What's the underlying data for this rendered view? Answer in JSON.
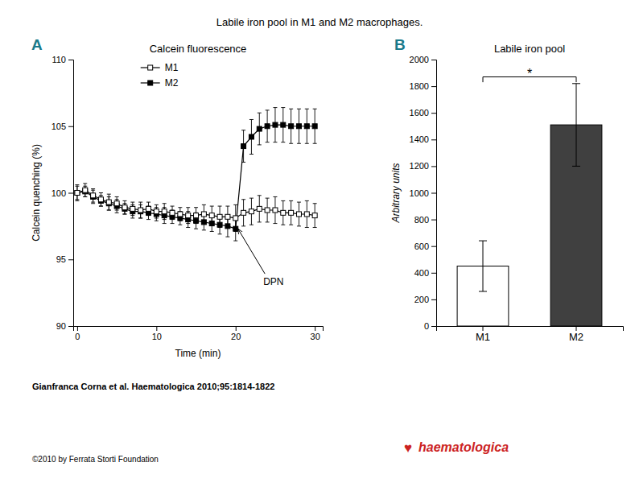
{
  "title": "Labile iron pool in M1 and M2 macrophages.",
  "annotations": [
    {
      "text": "Gianfranca Corna et al. Haematologica 2010;95:1814-1822"
    },
    {
      "text": "©2010 by Ferrata Storti Foundation"
    },
    {
      "text": "♥",
      "color": "#cc2222"
    },
    {
      "text": "haematologica",
      "color": "#cc2222"
    }
  ],
  "chart_data": [
    {
      "type": "line",
      "title": "Calcein fluorescence",
      "x_label": "Time (min)",
      "y_label": "Calcein quenching (%)",
      "x": [
        0,
        1,
        2,
        3,
        4,
        5,
        6,
        7,
        8,
        9,
        10,
        11,
        12,
        13,
        14,
        15,
        16,
        17,
        18,
        19,
        20,
        21,
        22,
        23,
        24,
        25,
        26,
        27,
        28,
        29,
        30
      ],
      "xlim": [
        -0.5,
        31
      ],
      "xticks": [
        0,
        10,
        20,
        30
      ],
      "ylim": [
        90,
        110
      ],
      "yticks": [
        90,
        95,
        100,
        105,
        110
      ],
      "grid": false,
      "legend": "upper left",
      "series": [
        {
          "name": "M1",
          "color": "#000000",
          "marker": "square-open",
          "line_style": "solid",
          "values": [
            100.0,
            100.2,
            99.8,
            99.5,
            99.3,
            99.2,
            98.9,
            98.8,
            98.7,
            98.8,
            98.6,
            98.6,
            98.5,
            98.4,
            98.3,
            98.3,
            98.4,
            98.3,
            98.2,
            98.2,
            98.1,
            98.5,
            98.6,
            98.8,
            98.7,
            98.7,
            98.5,
            98.5,
            98.4,
            98.4,
            98.3
          ],
          "errors": [
            0.6,
            0.5,
            0.5,
            0.5,
            0.6,
            0.5,
            0.5,
            0.5,
            0.6,
            0.5,
            0.5,
            0.6,
            0.5,
            0.5,
            0.6,
            0.6,
            0.7,
            0.7,
            0.8,
            0.8,
            1.0,
            1.0,
            1.0,
            1.0,
            0.9,
            1.0,
            0.9,
            0.9,
            0.9,
            1.0,
            0.9
          ]
        },
        {
          "name": "M2",
          "color": "#000000",
          "marker": "square",
          "line_style": "solid",
          "values": [
            100.0,
            100.1,
            99.7,
            99.4,
            99.2,
            99.0,
            98.8,
            98.6,
            98.6,
            98.5,
            98.4,
            98.3,
            98.2,
            98.1,
            98.0,
            97.9,
            97.8,
            97.7,
            97.6,
            97.5,
            97.3,
            103.5,
            104.2,
            104.8,
            105.0,
            105.1,
            105.1,
            105.0,
            105.0,
            105.0,
            105.0
          ],
          "errors": [
            0.5,
            0.4,
            0.5,
            0.4,
            0.5,
            0.5,
            0.4,
            0.5,
            0.5,
            0.5,
            0.5,
            0.6,
            0.5,
            0.5,
            0.6,
            0.6,
            0.6,
            0.6,
            0.7,
            0.8,
            0.9,
            1.2,
            1.3,
            1.2,
            1.2,
            1.3,
            1.3,
            1.3,
            1.3,
            1.3,
            1.3
          ]
        }
      ],
      "annotations": [
        {
          "text": "A",
          "color": "#1a7a8a"
        },
        {
          "text": "DPN",
          "x": 23.5,
          "y": 93.8,
          "arrow_x": 20.3,
          "arrow_y": 97.3
        }
      ]
    },
    {
      "type": "bar",
      "title": "Labile iron pool",
      "y_label": "Arbitrary units",
      "categories": [
        "M1",
        "M2"
      ],
      "values": [
        450,
        1510
      ],
      "errors": [
        190,
        310
      ],
      "colors": [
        "white",
        "#404040"
      ],
      "ylim": [
        0,
        2000
      ],
      "yticks": [
        0,
        200,
        400,
        600,
        800,
        1000,
        1200,
        1400,
        1600,
        1800,
        2000
      ],
      "grid": false,
      "annotations": [
        {
          "text": "B",
          "color": "#1a7a8a"
        },
        {
          "text": "*",
          "y": 1910,
          "bracket_y": 1870,
          "bracket_end_y": 1830,
          "from": "M1",
          "to": "M2"
        }
      ]
    }
  ]
}
